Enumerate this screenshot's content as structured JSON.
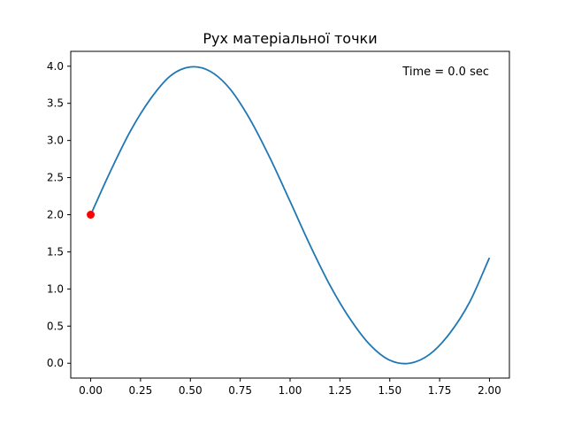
{
  "chart_data": {
    "type": "line",
    "title": "Рух матеріальної точки",
    "xlabel": "",
    "ylabel": "",
    "xlim": [
      -0.1,
      2.1
    ],
    "ylim": [
      -0.2,
      4.2
    ],
    "x_ticks": [
      0.0,
      0.25,
      0.5,
      0.75,
      1.0,
      1.25,
      1.5,
      1.75,
      2.0
    ],
    "x_tick_labels": [
      "0.00",
      "0.25",
      "0.50",
      "0.75",
      "1.00",
      "1.25",
      "1.50",
      "1.75",
      "2.00"
    ],
    "y_ticks": [
      0.0,
      0.5,
      1.0,
      1.5,
      2.0,
      2.5,
      3.0,
      3.5,
      4.0
    ],
    "y_tick_labels": [
      "0.0",
      "0.5",
      "1.0",
      "1.5",
      "2.0",
      "2.5",
      "3.0",
      "3.5",
      "4.0"
    ],
    "grid": false,
    "legend": "none",
    "annotation": "Time = 0.0 sec",
    "annotation_placement": "top-right",
    "series": [
      {
        "x": [
          0.0,
          0.1,
          0.2,
          0.3,
          0.4,
          0.5,
          0.6,
          0.7,
          0.8,
          0.9,
          1.0,
          1.1,
          1.2,
          1.3,
          1.4,
          1.5,
          1.6,
          1.7,
          1.8,
          1.9,
          2.0
        ],
        "y": [
          2.0,
          2.59,
          3.13,
          3.56,
          3.87,
          3.99,
          3.93,
          3.69,
          3.28,
          2.76,
          2.18,
          1.59,
          1.05,
          0.6,
          0.25,
          0.04,
          0.0,
          0.12,
          0.4,
          0.82,
          1.42
        ],
        "color": "#1f77b4"
      }
    ],
    "marker": {
      "x": 0.0,
      "y": 2.0,
      "color": "#ff0000"
    }
  }
}
